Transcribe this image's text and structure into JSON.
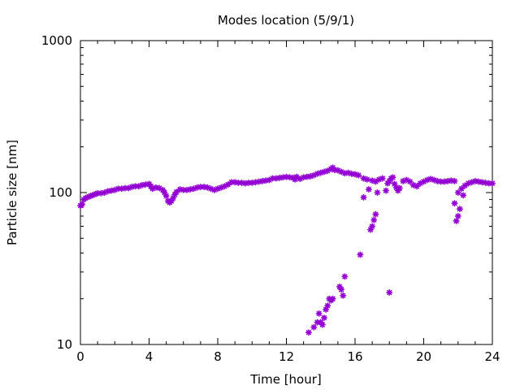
{
  "chart_data": {
    "type": "scatter",
    "title": "Modes location (5/9/1)",
    "xlabel": "Time [hour]",
    "ylabel": "Particle size [nm]",
    "xlim": [
      0,
      24
    ],
    "ylim": [
      10,
      1000
    ],
    "yscale": "log",
    "xticks": [
      0,
      4,
      8,
      12,
      16,
      20,
      24
    ],
    "xtick_labels": [
      "0",
      "4",
      "8",
      "12",
      "16",
      "20",
      "24"
    ],
    "yticks": [
      10,
      100,
      1000
    ],
    "ytick_labels": [
      "10",
      "100",
      "1000"
    ],
    "grid": false,
    "marker_color": "#9400d3",
    "series": [
      {
        "name": "main mode",
        "points": [
          [
            0.0,
            82
          ],
          [
            0.1,
            84
          ],
          [
            0.2,
            90
          ],
          [
            0.3,
            92
          ],
          [
            0.4,
            93
          ],
          [
            0.5,
            94
          ],
          [
            0.6,
            95
          ],
          [
            0.7,
            96
          ],
          [
            0.8,
            97
          ],
          [
            0.9,
            98
          ],
          [
            1.0,
            99
          ],
          [
            1.2,
            99
          ],
          [
            1.4,
            100
          ],
          [
            1.6,
            102
          ],
          [
            1.8,
            103
          ],
          [
            2.0,
            104
          ],
          [
            2.2,
            106
          ],
          [
            2.4,
            106
          ],
          [
            2.6,
            107
          ],
          [
            2.8,
            107
          ],
          [
            3.0,
            109
          ],
          [
            3.2,
            110
          ],
          [
            3.4,
            110
          ],
          [
            3.6,
            112
          ],
          [
            3.8,
            113
          ],
          [
            4.0,
            114
          ],
          [
            4.1,
            110
          ],
          [
            4.2,
            106
          ],
          [
            4.4,
            108
          ],
          [
            4.6,
            107
          ],
          [
            4.8,
            104
          ],
          [
            4.9,
            100
          ],
          [
            5.0,
            95
          ],
          [
            5.1,
            88
          ],
          [
            5.2,
            86
          ],
          [
            5.3,
            88
          ],
          [
            5.4,
            92
          ],
          [
            5.5,
            97
          ],
          [
            5.6,
            101
          ],
          [
            5.8,
            105
          ],
          [
            6.0,
            104
          ],
          [
            6.2,
            104
          ],
          [
            6.4,
            105
          ],
          [
            6.6,
            106
          ],
          [
            6.8,
            108
          ],
          [
            7.0,
            109
          ],
          [
            7.2,
            109
          ],
          [
            7.4,
            108
          ],
          [
            7.6,
            106
          ],
          [
            7.8,
            104
          ],
          [
            8.0,
            106
          ],
          [
            8.2,
            108
          ],
          [
            8.4,
            110
          ],
          [
            8.6,
            113
          ],
          [
            8.8,
            117
          ],
          [
            9.0,
            117
          ],
          [
            9.2,
            116
          ],
          [
            9.4,
            116
          ],
          [
            9.6,
            115
          ],
          [
            9.8,
            116
          ],
          [
            10.0,
            116
          ],
          [
            10.2,
            117
          ],
          [
            10.4,
            118
          ],
          [
            10.6,
            119
          ],
          [
            10.8,
            120
          ],
          [
            11.0,
            121
          ],
          [
            11.2,
            124
          ],
          [
            11.4,
            124
          ],
          [
            11.6,
            125
          ],
          [
            11.8,
            126
          ],
          [
            12.0,
            127
          ],
          [
            12.2,
            126
          ],
          [
            12.4,
            125
          ],
          [
            12.5,
            122
          ],
          [
            12.6,
            127
          ],
          [
            12.8,
            123
          ],
          [
            13.0,
            126
          ],
          [
            13.2,
            127
          ],
          [
            13.4,
            128
          ],
          [
            13.6,
            130
          ],
          [
            13.8,
            133
          ],
          [
            14.0,
            135
          ],
          [
            14.2,
            137
          ],
          [
            14.4,
            139
          ],
          [
            14.6,
            143
          ],
          [
            14.7,
            146
          ],
          [
            14.8,
            141
          ],
          [
            15.0,
            140
          ],
          [
            15.2,
            137
          ],
          [
            15.4,
            134
          ],
          [
            15.6,
            135
          ],
          [
            15.8,
            133
          ],
          [
            16.0,
            132
          ],
          [
            16.2,
            130
          ],
          [
            16.5,
            124
          ],
          [
            16.7,
            122
          ],
          [
            17.0,
            120
          ],
          [
            17.2,
            118
          ],
          [
            17.4,
            122
          ],
          [
            17.6,
            124
          ],
          [
            17.8,
            103
          ],
          [
            17.9,
            115
          ],
          [
            18.0,
            119
          ],
          [
            18.1,
            124
          ],
          [
            18.2,
            126
          ],
          [
            18.3,
            114
          ],
          [
            18.4,
            108
          ],
          [
            18.5,
            103
          ],
          [
            18.6,
            107
          ],
          [
            18.8,
            119
          ],
          [
            19.0,
            121
          ],
          [
            19.2,
            118
          ],
          [
            19.4,
            112
          ],
          [
            19.6,
            110
          ],
          [
            19.8,
            115
          ],
          [
            20.0,
            118
          ],
          [
            20.2,
            121
          ],
          [
            20.4,
            123
          ],
          [
            20.6,
            121
          ],
          [
            20.8,
            119
          ],
          [
            21.0,
            118
          ],
          [
            21.2,
            118
          ],
          [
            21.4,
            119
          ],
          [
            21.6,
            120
          ],
          [
            21.8,
            119
          ],
          [
            22.0,
            100
          ],
          [
            22.2,
            106
          ],
          [
            22.4,
            111
          ],
          [
            22.6,
            115
          ],
          [
            22.8,
            117
          ],
          [
            23.0,
            119
          ],
          [
            23.2,
            118
          ],
          [
            23.4,
            117
          ],
          [
            23.6,
            116
          ],
          [
            23.8,
            115
          ],
          [
            24.0,
            115
          ]
        ]
      },
      {
        "name": "growing mode",
        "points": [
          [
            13.3,
            12
          ],
          [
            13.6,
            13
          ],
          [
            13.8,
            14
          ],
          [
            13.9,
            16
          ],
          [
            14.0,
            14
          ],
          [
            14.1,
            13.5
          ],
          [
            14.2,
            15
          ],
          [
            14.3,
            17
          ],
          [
            14.4,
            18
          ],
          [
            14.5,
            20
          ],
          [
            14.6,
            19.5
          ],
          [
            14.7,
            20
          ],
          [
            15.1,
            24
          ],
          [
            15.2,
            23
          ],
          [
            15.3,
            21
          ],
          [
            15.4,
            28
          ],
          [
            16.3,
            39
          ],
          [
            16.5,
            93
          ],
          [
            16.8,
            105
          ],
          [
            16.9,
            57
          ],
          [
            17.0,
            60
          ],
          [
            17.1,
            66
          ],
          [
            17.2,
            72
          ],
          [
            17.3,
            100
          ],
          [
            18.0,
            22
          ],
          [
            21.8,
            85
          ],
          [
            21.9,
            65
          ],
          [
            22.0,
            70
          ],
          [
            22.1,
            78
          ],
          [
            22.3,
            96
          ]
        ]
      }
    ]
  }
}
